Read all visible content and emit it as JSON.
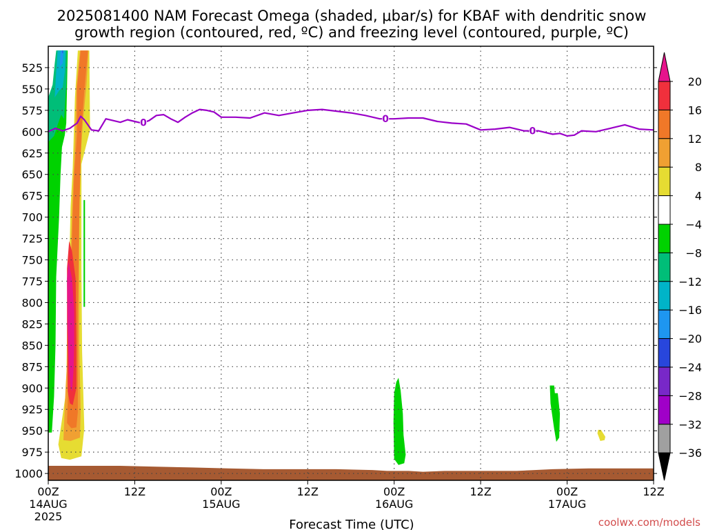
{
  "title": {
    "line1": "2025081400 NAM Forecast Omega (shaded, μbar/s) for KBAF with dendritic snow",
    "line2": "growth region (contoured, red, ºC) and freezing level (contoured, purple, ºC)"
  },
  "watermark": "coolwx.com/models",
  "chart_data": {
    "type": "heatmap",
    "title": "2025081400 NAM Forecast Omega (shaded, μbar/s) for KBAF with dendritic snow growth region (contoured, red, ºC) and freezing level (contoured, purple, ºC)",
    "xlabel": "Forecast Time (UTC)",
    "ylabel": "",
    "y_scale": "pressure (hPa), inverted",
    "ylim": [
      1008,
      500
    ],
    "xlim_hours": [
      0,
      84
    ],
    "y_ticks": [
      525,
      550,
      575,
      600,
      625,
      650,
      675,
      700,
      725,
      750,
      775,
      800,
      825,
      850,
      875,
      900,
      925,
      950,
      975,
      1000
    ],
    "x_ticks": [
      {
        "hour": 0,
        "label": "00Z",
        "date": "14AUG",
        "year": "2025"
      },
      {
        "hour": 12,
        "label": "12Z",
        "date": "",
        "year": ""
      },
      {
        "hour": 24,
        "label": "00Z",
        "date": "15AUG",
        "year": ""
      },
      {
        "hour": 36,
        "label": "12Z",
        "date": "",
        "year": ""
      },
      {
        "hour": 48,
        "label": "00Z",
        "date": "16AUG",
        "year": ""
      },
      {
        "hour": 60,
        "label": "12Z",
        "date": "",
        "year": ""
      },
      {
        "hour": 72,
        "label": "00Z",
        "date": "17AUG",
        "year": ""
      },
      {
        "hour": 84,
        "label": "12Z",
        "date": "",
        "year": ""
      }
    ],
    "grid": true,
    "colorbar": {
      "ticks": [
        "20",
        "16",
        "12",
        "8",
        "4",
        "−4",
        "−8",
        "−12",
        "−16",
        "−20",
        "−24",
        "−28",
        "−32",
        "−36"
      ],
      "bins": [
        {
          "from": 16,
          "to": 20,
          "color": "#f0303c"
        },
        {
          "from": 12,
          "to": 16,
          "color": "#f07828"
        },
        {
          "from": 8,
          "to": 12,
          "color": "#f0a032"
        },
        {
          "from": 4,
          "to": 8,
          "color": "#e6dc32"
        },
        {
          "from": -4,
          "to": 4,
          "color": "#ffffff"
        },
        {
          "from": -8,
          "to": -4,
          "color": "#00d200"
        },
        {
          "from": -12,
          "to": -8,
          "color": "#00be78"
        },
        {
          "from": -16,
          "to": -12,
          "color": "#00b4c8"
        },
        {
          "from": -20,
          "to": -16,
          "color": "#1e96f0"
        },
        {
          "from": -24,
          "to": -20,
          "color": "#2846dc"
        },
        {
          "from": -28,
          "to": -24,
          "color": "#7828c8"
        },
        {
          "from": -32,
          "to": -28,
          "color": "#a000c8"
        },
        {
          "from": -36,
          "to": -32,
          "color": "#a0a0a0"
        }
      ],
      "top_arrow_color": "#e6148c",
      "bottom_arrow_color": "#000000"
    },
    "freezing_level": {
      "label": "0",
      "color": "#9a00c8",
      "label_hours": [
        13.2,
        46.8,
        67.2
      ],
      "hours": [
        0,
        1,
        2,
        3,
        4,
        4.5,
        5,
        5.5,
        6,
        7,
        8,
        9,
        10,
        11,
        12,
        13,
        14,
        15,
        16,
        17,
        18,
        19,
        20,
        21,
        22,
        23,
        24,
        26,
        28,
        30,
        32,
        34,
        36,
        38,
        40,
        42,
        44,
        46,
        48,
        50,
        52,
        54,
        56,
        58,
        60,
        62,
        64,
        66,
        68,
        70,
        71,
        72,
        73,
        74,
        76,
        78,
        80,
        82,
        84
      ],
      "pressure": [
        600,
        596,
        599,
        596,
        590,
        582,
        586,
        592,
        598,
        599,
        585,
        587,
        589,
        586,
        588,
        590,
        587,
        581,
        580,
        585,
        589,
        583,
        578,
        574,
        575,
        577,
        583,
        583,
        584,
        578,
        581,
        578,
        575,
        574,
        576,
        578,
        581,
        585,
        585,
        584,
        584,
        588,
        590,
        591,
        598,
        597,
        595,
        599,
        599,
        603,
        602,
        605,
        604,
        599,
        600,
        596,
        592,
        597,
        598
      ]
    },
    "omega_regions": [
      {
        "bin": "4 to 8",
        "desc": "positive band",
        "outline": [
          [
            1.4,
            966
          ],
          [
            2.5,
            903
          ],
          [
            2.6,
            835
          ],
          [
            2.9,
            760
          ],
          [
            3.1,
            688
          ],
          [
            3.4,
            642
          ],
          [
            3.7,
            560
          ],
          [
            4.1,
            505
          ],
          [
            5.7,
            505
          ],
          [
            5.8,
            598
          ],
          [
            4.6,
            638
          ],
          [
            4.6,
            760
          ],
          [
            4.7,
            858
          ],
          [
            5.0,
            947
          ],
          [
            4.6,
            980
          ],
          [
            3.0,
            984
          ],
          [
            1.8,
            982
          ]
        ]
      },
      {
        "bin": "8 to 12",
        "desc": "positive band",
        "outline": [
          [
            2.1,
            961
          ],
          [
            2.4,
            900
          ],
          [
            2.9,
            828
          ],
          [
            3.1,
            752
          ],
          [
            3.3,
            690
          ],
          [
            3.7,
            610
          ],
          [
            3.9,
            548
          ],
          [
            4.4,
            505
          ],
          [
            5.6,
            505
          ],
          [
            5.3,
            545
          ],
          [
            4.8,
            590
          ],
          [
            4.4,
            640
          ],
          [
            4.3,
            740
          ],
          [
            4.3,
            848
          ],
          [
            4.5,
            928
          ],
          [
            4.4,
            958
          ],
          [
            3.1,
            962
          ]
        ]
      },
      {
        "bin": "12 to 16",
        "desc": "positive band",
        "outline": [
          [
            2.6,
            941
          ],
          [
            2.9,
            858
          ],
          [
            3.1,
            778
          ],
          [
            3.4,
            700
          ],
          [
            3.6,
            650
          ],
          [
            4.0,
            602
          ],
          [
            4.0,
            548
          ],
          [
            4.5,
            505
          ],
          [
            5.5,
            505
          ],
          [
            5.0,
            552
          ],
          [
            4.6,
            600
          ],
          [
            4.3,
            700
          ],
          [
            4.1,
            810
          ],
          [
            4.1,
            928
          ],
          [
            3.9,
            946
          ],
          [
            3.2,
            947
          ]
        ]
      },
      {
        "bin": "16 to 20",
        "desc": "positive core",
        "outline": [
          [
            2.7,
            904
          ],
          [
            2.6,
            826
          ],
          [
            2.6,
            760
          ],
          [
            2.9,
            728
          ],
          [
            3.3,
            740
          ],
          [
            3.8,
            772
          ],
          [
            3.9,
            848
          ],
          [
            3.9,
            900
          ],
          [
            3.4,
            920
          ],
          [
            3.0,
            918
          ]
        ]
      },
      {
        "bin": ">20",
        "desc": "positive core max",
        "outline": [
          [
            2.9,
            880
          ],
          [
            2.7,
            830
          ],
          [
            2.6,
            772
          ],
          [
            2.8,
            752
          ],
          [
            3.3,
            772
          ],
          [
            3.6,
            810
          ],
          [
            3.6,
            848
          ],
          [
            3.5,
            880
          ],
          [
            3.3,
            904
          ],
          [
            3.1,
            900
          ]
        ]
      },
      {
        "bin": "-8 to -4",
        "desc": "negative band",
        "outline": [
          [
            0.0,
            952
          ],
          [
            0.0,
            612
          ],
          [
            0.5,
            592
          ],
          [
            0.8,
            560
          ],
          [
            1.0,
            530
          ],
          [
            1.2,
            505
          ],
          [
            2.7,
            505
          ],
          [
            2.6,
            548
          ],
          [
            2.5,
            590
          ],
          [
            2.3,
            604
          ],
          [
            1.9,
            618
          ],
          [
            1.7,
            650
          ],
          [
            1.5,
            700
          ],
          [
            1.1,
            770
          ],
          [
            1.0,
            850
          ],
          [
            0.8,
            910
          ],
          [
            0.5,
            952
          ]
        ]
      },
      {
        "bin": "-12 to -8",
        "desc": "negative band",
        "outline": [
          [
            0.0,
            612
          ],
          [
            0.0,
            560
          ],
          [
            0.6,
            545
          ],
          [
            0.9,
            520
          ],
          [
            1.1,
            505
          ],
          [
            2.6,
            505
          ],
          [
            2.5,
            545
          ],
          [
            2.2,
            585
          ],
          [
            1.8,
            580
          ],
          [
            1.3,
            592
          ],
          [
            0.8,
            605
          ]
        ]
      },
      {
        "bin": "-16 to -12",
        "desc": "negative band",
        "outline": [
          [
            0.9,
            560
          ],
          [
            1.1,
            530
          ],
          [
            1.3,
            505
          ],
          [
            2.4,
            505
          ],
          [
            2.3,
            530
          ],
          [
            2.0,
            548
          ],
          [
            1.5,
            552
          ]
        ]
      },
      {
        "bin": "-20 to -16",
        "desc": "negative band",
        "outline": [
          [
            1.6,
            524
          ],
          [
            1.7,
            505
          ],
          [
            2.1,
            505
          ],
          [
            2.0,
            520
          ]
        ]
      },
      {
        "bin": "-24 to -20",
        "desc": "negative core",
        "outline": [
          [
            1.95,
            508
          ],
          [
            1.95,
            505
          ],
          [
            2.05,
            505
          ],
          [
            2.05,
            508
          ]
        ]
      },
      {
        "bin": "-8 to -4",
        "desc": "thin streak",
        "outline": [
          [
            4.9,
            805
          ],
          [
            4.9,
            680
          ],
          [
            5.1,
            680
          ],
          [
            5.1,
            805
          ]
        ]
      },
      {
        "bin": "-8 to -4",
        "desc": "16AUG low-level",
        "outline": [
          [
            48.0,
            983
          ],
          [
            47.9,
            940
          ],
          [
            48.0,
            906
          ],
          [
            48.3,
            893
          ],
          [
            48.6,
            888
          ],
          [
            48.9,
            903
          ],
          [
            49.2,
            930
          ],
          [
            49.3,
            955
          ],
          [
            49.6,
            978
          ],
          [
            49.4,
            988
          ],
          [
            48.6,
            990
          ]
        ]
      },
      {
        "bin": "-8 to -4",
        "desc": "17AUG low-level",
        "outline": [
          [
            69.7,
            918
          ],
          [
            69.6,
            897
          ],
          [
            70.2,
            897
          ],
          [
            70.3,
            906
          ],
          [
            70.7,
            906
          ],
          [
            71.0,
            930
          ],
          [
            70.9,
            958
          ],
          [
            70.5,
            963
          ],
          [
            70.2,
            948
          ],
          [
            69.9,
            930
          ]
        ]
      },
      {
        "bin": "4 to 8",
        "desc": "17AUG low-level",
        "outline": [
          [
            76.2,
            953
          ],
          [
            76.3,
            949
          ],
          [
            76.7,
            949
          ],
          [
            77.3,
            957
          ],
          [
            77.2,
            961
          ],
          [
            76.6,
            962
          ]
        ]
      }
    ],
    "terrain": {
      "color": "#a65a32",
      "hours": [
        0,
        5,
        10,
        15,
        20,
        25,
        30,
        35,
        40,
        45,
        47,
        50,
        52,
        55,
        60,
        65,
        70,
        75,
        80,
        84
      ],
      "surface_pressure": [
        991,
        991,
        991,
        992,
        993,
        994,
        995,
        995,
        995,
        996,
        997,
        997,
        998,
        997,
        997,
        997,
        995,
        994,
        994,
        994
      ]
    }
  }
}
